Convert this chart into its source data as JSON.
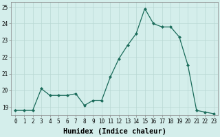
{
  "x": [
    0,
    1,
    2,
    3,
    4,
    5,
    6,
    7,
    8,
    9,
    10,
    11,
    12,
    13,
    14,
    15,
    16,
    17,
    18,
    19,
    20,
    21,
    22,
    23
  ],
  "y": [
    18.8,
    18.8,
    18.8,
    20.1,
    19.7,
    19.7,
    19.7,
    19.8,
    19.1,
    19.4,
    19.4,
    20.8,
    21.9,
    22.7,
    23.4,
    24.9,
    24.0,
    23.8,
    23.8,
    23.2,
    21.5,
    18.8,
    18.7,
    18.6
  ],
  "line_color": "#1a6b5a",
  "marker": "D",
  "marker_size": 2.0,
  "bg_color": "#d4eeeb",
  "grid_color": "#b8d8d4",
  "xlabel": "Humidex (Indice chaleur)",
  "ylim": [
    18.5,
    25.3
  ],
  "xlim": [
    -0.5,
    23.5
  ],
  "yticks": [
    19,
    20,
    21,
    22,
    23,
    24,
    25
  ],
  "xticks": [
    0,
    1,
    2,
    3,
    4,
    5,
    6,
    7,
    8,
    9,
    10,
    11,
    12,
    13,
    14,
    15,
    16,
    17,
    18,
    19,
    20,
    21,
    22,
    23
  ],
  "tick_fontsize": 5.5,
  "xlabel_fontsize": 7.5,
  "linewidth": 0.9
}
